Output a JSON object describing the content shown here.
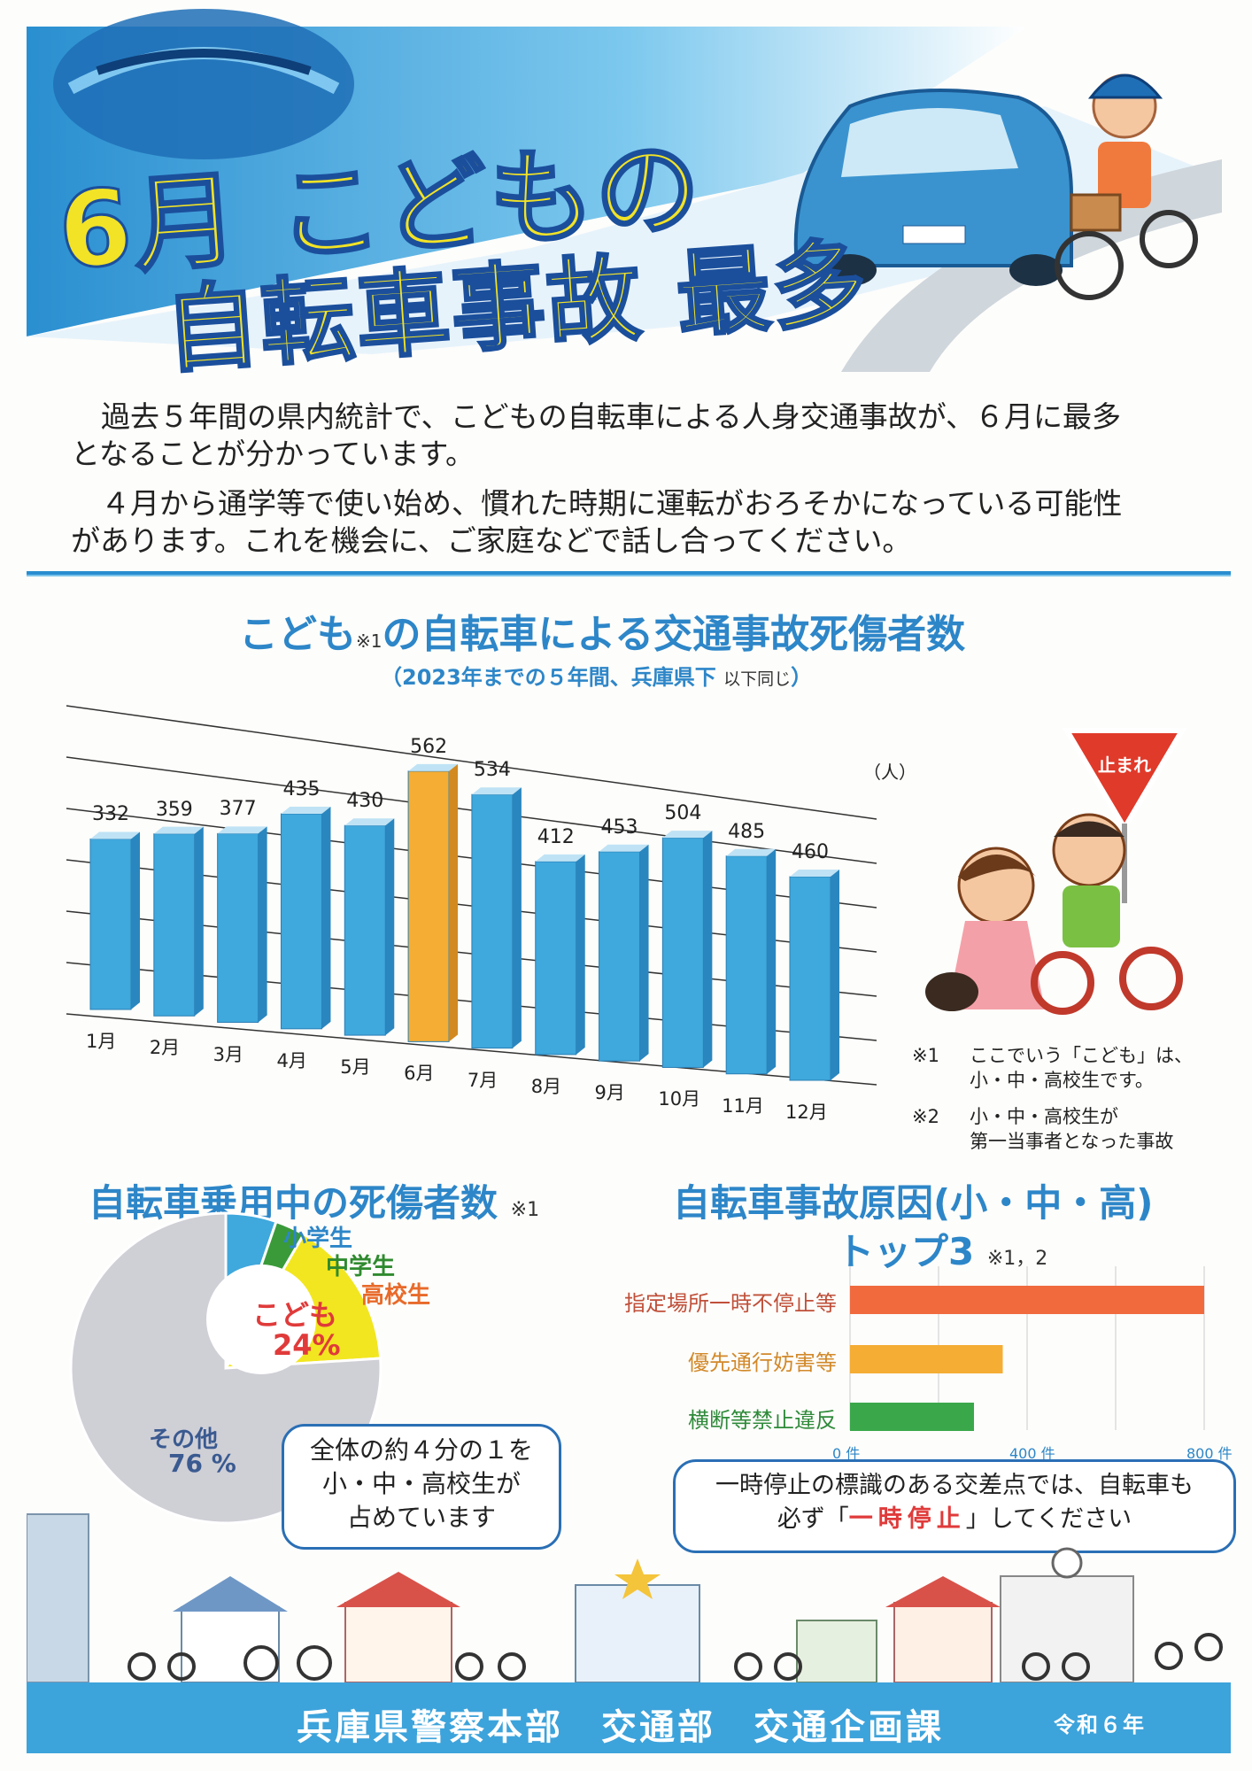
{
  "header": {
    "title_line1": "6月 こどもの",
    "title_line2": "自転車事故 最多"
  },
  "intro": {
    "p1_line1": "過去５年間の県内統計で、こどもの自転車による人身交通事故が、６月に最多",
    "p1_line2": "となることが分かっています。",
    "p2_line1": "４月から通学等で使い始め、慣れた時期に運転がおろそかになっている可能性",
    "p2_line2": "があります。これを機会に、ご家庭などで話し合ってください。"
  },
  "monthly": {
    "title_a": "こども",
    "title_note": "※1",
    "title_b": "の自転車による交通事故死傷者数",
    "subtitle_a": "（2023年までの５年間、兵庫県下",
    "subtitle_b": "以下同じ",
    "subtitle_c": "）",
    "unit": "（人）"
  },
  "chart_data": [
    {
      "type": "bar",
      "title": "こども※1の自転車による交通事故死傷者数",
      "categories": [
        "1月",
        "2月",
        "3月",
        "4月",
        "5月",
        "6月",
        "7月",
        "8月",
        "9月",
        "10月",
        "11月",
        "12月"
      ],
      "values": [
        332,
        359,
        377,
        435,
        430,
        562,
        534,
        412,
        453,
        504,
        485,
        460
      ],
      "highlight_index": 5,
      "colors": {
        "bar": "#3fa8dc",
        "highlight": "#f5ad33"
      },
      "ylabel": "（人）",
      "grid": true
    },
    {
      "type": "pie",
      "title": "自転車乗用中の死傷者数",
      "slices": [
        {
          "label": "小学生",
          "color": "#3fa8dc"
        },
        {
          "label": "中学生",
          "color": "#3a9a3a"
        },
        {
          "label": "高校生",
          "color": "#f2e620"
        },
        {
          "label": "その他",
          "value": 76,
          "color": "#cfcfd6"
        }
      ],
      "group_label": "こども",
      "group_value": 24,
      "group_value_text": "24%",
      "other_value_text": "76 %"
    },
    {
      "type": "bar",
      "orientation": "horizontal",
      "title": "自転車事故原因(小・中・高) トップ3",
      "categories": [
        "指定場所一時不停止等",
        "優先通行妨害等",
        "横断等禁止違反"
      ],
      "values": [
        800,
        345,
        280
      ],
      "colors": [
        "#f06a3e",
        "#f5ad33",
        "#3aa84a"
      ],
      "xticks": [
        "0 件",
        "400 件",
        "800 件"
      ],
      "xlim": [
        0,
        800
      ]
    }
  ],
  "notes": {
    "n1_mark": "※1",
    "n1_line1": "ここでいう「こども」は、",
    "n1_line2": "小・中・高校生です。",
    "n2_mark": "※2",
    "n2_line1": "小・中・高校生が",
    "n2_line2": "第一当事者となった事故"
  },
  "pie_section": {
    "title": "自転車乗用中の死傷者数",
    "note": "※1",
    "label_elem": "小学生",
    "label_junior": "中学生",
    "label_high": "高校生",
    "kodomo": "こども",
    "kodomo_pct": "24%",
    "other": "その他",
    "other_pct": "76 %",
    "bubble_line1": "全体の約４分の１を",
    "bubble_line2": "小・中・高校生が",
    "bubble_line3": "占めています"
  },
  "cause_section": {
    "title_line1": "自転車事故原因(小・中・高)",
    "title_line2": "トップ3",
    "note": "※1，2",
    "bubble_line1": "一時停止の標識のある交差点では、自転車も",
    "bubble_line2a": "必ず「",
    "bubble_line2b": "一時停止",
    "bubble_line2c": "」してください"
  },
  "sign": {
    "text": "止まれ"
  },
  "footer": {
    "org": "兵庫県警察本部　交通部　交通企画課",
    "year": "令和６年"
  }
}
